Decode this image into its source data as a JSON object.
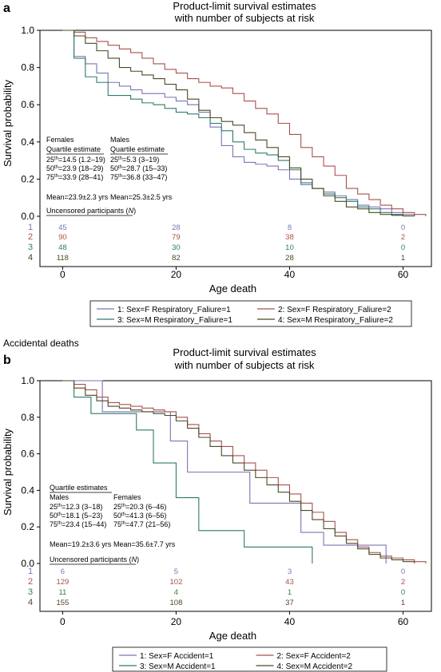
{
  "chart_data": [
    {
      "type": "line",
      "panel_label": "a",
      "title": "Product-limit survival estimates",
      "subtitle": "with number of subjects at risk",
      "xlabel": "Age death",
      "ylabel": "Survival probability",
      "xlim": [
        -4,
        65
      ],
      "ylim": [
        0,
        1
      ],
      "xticks": [
        0,
        20,
        40,
        60
      ],
      "yticks": [
        0.0,
        0.2,
        0.4,
        0.6,
        0.8,
        1.0
      ],
      "ytick_labels": [
        "0.0",
        "0.2",
        "0.4",
        "0.6",
        "0.8",
        "1.0"
      ],
      "grid": false,
      "series": [
        {
          "name": "1: Sex=F Respiratory_Faliure=1",
          "color": "#7c74b4",
          "x": [
            0,
            2,
            4,
            6,
            8,
            10,
            12,
            14,
            16,
            18,
            20,
            22,
            24,
            26,
            28,
            30,
            32,
            34,
            36,
            38,
            40,
            42,
            44,
            46,
            48,
            50,
            52,
            54,
            56,
            58,
            60,
            62
          ],
          "y": [
            1.0,
            0.86,
            0.82,
            0.77,
            0.72,
            0.7,
            0.68,
            0.66,
            0.66,
            0.64,
            0.62,
            0.6,
            0.56,
            0.48,
            0.38,
            0.32,
            0.29,
            0.28,
            0.27,
            0.25,
            0.2,
            0.17,
            0.15,
            0.13,
            0.11,
            0.09,
            0.06,
            0.05,
            0.04,
            0.02,
            0.01,
            0.0
          ]
        },
        {
          "name": "2: Sex=F Respiratory_Faliure=2",
          "color": "#a8514d",
          "x": [
            0,
            2,
            4,
            6,
            8,
            10,
            12,
            14,
            16,
            18,
            20,
            22,
            24,
            26,
            28,
            30,
            32,
            34,
            36,
            38,
            40,
            42,
            44,
            46,
            48,
            50,
            52,
            54,
            56,
            58,
            60,
            62,
            64
          ],
          "y": [
            1.0,
            0.99,
            0.96,
            0.94,
            0.92,
            0.9,
            0.88,
            0.85,
            0.82,
            0.79,
            0.77,
            0.74,
            0.72,
            0.7,
            0.69,
            0.66,
            0.62,
            0.58,
            0.55,
            0.5,
            0.44,
            0.37,
            0.32,
            0.27,
            0.22,
            0.15,
            0.12,
            0.09,
            0.06,
            0.04,
            0.02,
            0.01,
            0.0
          ]
        },
        {
          "name": "3: Sex=M Respiratory_Faliure=1",
          "color": "#2e7a6a",
          "x": [
            0,
            2,
            4,
            6,
            8,
            10,
            12,
            14,
            16,
            18,
            20,
            22,
            24,
            26,
            28,
            30,
            32,
            34,
            36,
            38,
            40,
            42,
            44,
            46,
            48,
            50,
            52,
            54,
            56,
            58,
            60
          ],
          "y": [
            1.0,
            0.85,
            0.75,
            0.72,
            0.65,
            0.65,
            0.63,
            0.61,
            0.6,
            0.58,
            0.56,
            0.55,
            0.53,
            0.5,
            0.46,
            0.4,
            0.36,
            0.34,
            0.33,
            0.3,
            0.25,
            0.18,
            0.15,
            0.12,
            0.1,
            0.08,
            0.05,
            0.04,
            0.02,
            0.01,
            0.0
          ]
        },
        {
          "name": "4: Sex=M Respiratory_Faliure=2",
          "color": "#4a4a26",
          "x": [
            0,
            2,
            4,
            6,
            8,
            10,
            12,
            14,
            16,
            18,
            20,
            22,
            24,
            26,
            28,
            30,
            32,
            34,
            36,
            38,
            40,
            42,
            44,
            46,
            48,
            50,
            52,
            54,
            56,
            58,
            60,
            62
          ],
          "y": [
            1.0,
            0.97,
            0.93,
            0.89,
            0.85,
            0.8,
            0.78,
            0.76,
            0.74,
            0.71,
            0.68,
            0.63,
            0.57,
            0.53,
            0.51,
            0.49,
            0.45,
            0.41,
            0.37,
            0.32,
            0.26,
            0.2,
            0.15,
            0.11,
            0.08,
            0.05,
            0.04,
            0.02,
            0.01,
            0.005,
            0.002,
            0.0
          ]
        }
      ],
      "stats_box": {
        "left_head_1": "Females",
        "left_head_2": "Quartile estimate",
        "left_rows": [
          {
            "pre": "25",
            "sup": "th",
            "post": "=14.5 (1.2–19)"
          },
          {
            "pre": "50",
            "sup": "th",
            "post": "=23.9 (18–29)"
          },
          {
            "pre": "75",
            "sup": "th",
            "post": "=33.9 (28–41)"
          }
        ],
        "left_mean": "Mean=23.9±2.3 yrs",
        "right_head_1": "Males",
        "right_head_2": "Quartile estimate",
        "right_rows": [
          {
            "pre": "25",
            "sup": "th",
            "post": "=5.3 (3–19)"
          },
          {
            "pre": "50",
            "sup": "th",
            "post": "=28.7 (15–33)"
          },
          {
            "pre": "75",
            "sup": "th",
            "post": "=36.8 (33–47)"
          }
        ],
        "right_mean": "Mean=25.3±2.5 yrs"
      },
      "risk_label": "Uncensored participants (",
      "risk_label_italic": "N",
      "risk_label_end": ")",
      "risk_table": {
        "times": [
          0,
          20,
          40,
          60
        ],
        "rows": [
          {
            "label": "1",
            "color": "#7c74b4",
            "values": [
              "45",
              "28",
              "8",
              "0"
            ]
          },
          {
            "label": "2",
            "color": "#a8514d",
            "values": [
              "90",
              "79",
              "38",
              "2"
            ]
          },
          {
            "label": "3",
            "color": "#2e7a6a",
            "values": [
              "48",
              "30",
              "10",
              "0"
            ]
          },
          {
            "label": "4",
            "color": "#4a4a26",
            "values": [
              "118",
              "82",
              "28",
              "1"
            ]
          }
        ]
      }
    },
    {
      "type": "line",
      "panel_label": "b",
      "section_title": "Accidental deaths",
      "title": "Product-limit survival estimates",
      "subtitle": "with number of subjects at risk",
      "xlabel": "Age death",
      "ylabel": "Survival probability",
      "xlim": [
        -4,
        65
      ],
      "ylim": [
        0,
        1
      ],
      "xticks": [
        0,
        20,
        40,
        60
      ],
      "yticks": [
        0.0,
        0.2,
        0.4,
        0.6,
        0.8,
        1.0
      ],
      "ytick_labels": [
        "0.0",
        "0.2",
        "0.4",
        "0.6",
        "0.8",
        "1.0"
      ],
      "grid": false,
      "series": [
        {
          "name": "1: Sex=F Accident=1",
          "color": "#7c74b4",
          "x": [
            0,
            7,
            7,
            19,
            19,
            22,
            22,
            33,
            33,
            42,
            42,
            46,
            46,
            57,
            57
          ],
          "y": [
            1.0,
            1.0,
            0.83,
            0.83,
            0.67,
            0.67,
            0.5,
            0.5,
            0.33,
            0.33,
            0.17,
            0.17,
            0.1,
            0.1,
            0.0
          ]
        },
        {
          "name": "2: Sex=F Accident=2",
          "color": "#a8514d",
          "x": [
            0,
            2,
            4,
            6,
            8,
            10,
            12,
            14,
            16,
            18,
            20,
            22,
            24,
            26,
            28,
            30,
            32,
            34,
            36,
            38,
            40,
            42,
            44,
            46,
            48,
            50,
            52,
            54,
            56,
            58,
            60,
            62,
            64
          ],
          "y": [
            1.0,
            0.98,
            0.95,
            0.91,
            0.88,
            0.87,
            0.86,
            0.85,
            0.84,
            0.83,
            0.8,
            0.76,
            0.71,
            0.67,
            0.64,
            0.59,
            0.55,
            0.51,
            0.47,
            0.43,
            0.38,
            0.33,
            0.28,
            0.23,
            0.17,
            0.13,
            0.09,
            0.06,
            0.04,
            0.03,
            0.02,
            0.01,
            0.0
          ]
        },
        {
          "name": "3: Sex=M Accident=1",
          "color": "#2e7a6a",
          "x": [
            0,
            2,
            2,
            5,
            5,
            13,
            13,
            16,
            16,
            20,
            20,
            24,
            24,
            32,
            32,
            44,
            44
          ],
          "y": [
            1.0,
            1.0,
            0.91,
            0.91,
            0.82,
            0.82,
            0.73,
            0.73,
            0.55,
            0.55,
            0.36,
            0.36,
            0.18,
            0.18,
            0.09,
            0.09,
            0.0
          ]
        },
        {
          "name": "4: Sex=M Accident=2",
          "color": "#4a4a26",
          "x": [
            0,
            2,
            4,
            6,
            8,
            10,
            12,
            14,
            16,
            18,
            20,
            22,
            24,
            26,
            28,
            30,
            32,
            34,
            36,
            38,
            40,
            42,
            44,
            46,
            48,
            50,
            52,
            54,
            56,
            58,
            60,
            62
          ],
          "y": [
            1.0,
            0.96,
            0.92,
            0.89,
            0.86,
            0.85,
            0.84,
            0.83,
            0.82,
            0.81,
            0.78,
            0.74,
            0.69,
            0.64,
            0.59,
            0.55,
            0.51,
            0.47,
            0.43,
            0.39,
            0.34,
            0.29,
            0.24,
            0.19,
            0.15,
            0.11,
            0.08,
            0.05,
            0.03,
            0.02,
            0.01,
            0.0
          ]
        }
      ],
      "stats_box": {
        "title": "Quartile estimates",
        "left_head_1": "Males",
        "left_rows": [
          {
            "pre": "25",
            "sup": "th",
            "post": "=12.3 (3–18)"
          },
          {
            "pre": "50",
            "sup": "th",
            "post": "=18.1 (5–23)"
          },
          {
            "pre": "75",
            "sup": "th",
            "post": "=23.4 (15–44)"
          }
        ],
        "left_mean": "Mean=19.2±3.6 yrs",
        "right_head_1": "Females",
        "right_rows": [
          {
            "pre": "25",
            "sup": "th",
            "post": "=20.3 (6–46)"
          },
          {
            "pre": "50",
            "sup": "th",
            "post": "=41.3 (6–56)"
          },
          {
            "pre": "75",
            "sup": "th",
            "post": "=47.7 (21–56)"
          }
        ],
        "right_mean": "Mean=35.6±7.7 yrs"
      },
      "risk_label": "Uncensored participants (",
      "risk_label_italic": "N",
      "risk_label_end": ")",
      "risk_table": {
        "times": [
          0,
          20,
          40,
          60
        ],
        "rows": [
          {
            "label": "1",
            "color": "#7c74b4",
            "values": [
              "6",
              "5",
              "3",
              "0"
            ]
          },
          {
            "label": "2",
            "color": "#a8514d",
            "values": [
              "129",
              "102",
              "43",
              "2"
            ]
          },
          {
            "label": "3",
            "color": "#2e7a6a",
            "values": [
              "11",
              "4",
              "1",
              "0"
            ]
          },
          {
            "label": "4",
            "color": "#4a4a26",
            "values": [
              "155",
              "108",
              "37",
              "1"
            ]
          }
        ]
      }
    }
  ]
}
